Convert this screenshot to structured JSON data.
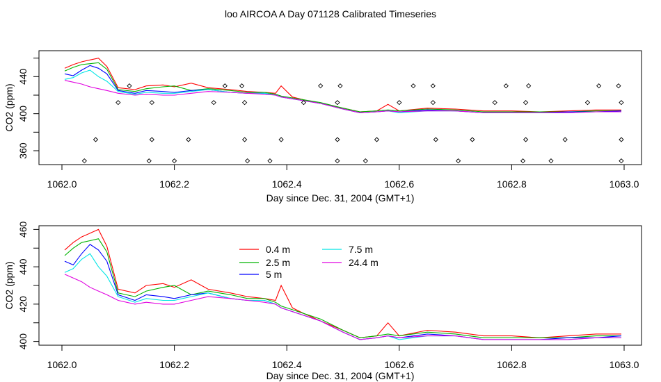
{
  "figure": {
    "title": "loo AIRCOA A  Day 071128  Calibrated Timeseries"
  },
  "series_colors": {
    "0.4 m": "#ff0000",
    "2.5 m": "#00b400",
    "5 m": "#0000ff",
    "7.5 m": "#00e5e5",
    "24.4 m": "#e000e0"
  },
  "chart_data": [
    {
      "type": "line",
      "xlabel": "Day since Dec. 31, 2004 (GMT+1)",
      "ylabel": "CO2 (ppm)",
      "xlim": [
        1062.0,
        1063.0
      ],
      "ylim": [
        345,
        468
      ],
      "xticks": [
        1062.0,
        1062.2,
        1062.4,
        1062.6,
        1062.8,
        1063.0
      ],
      "xtick_labels": [
        "1062.0",
        "1062.2",
        "1062.4",
        "1062.6",
        "1062.8",
        "1063.0"
      ],
      "yticks": [
        360,
        400,
        440
      ],
      "ytick_labels": [
        "360",
        "400",
        "440"
      ],
      "minor_yticks": [
        340,
        380,
        420,
        460
      ],
      "grid": false,
      "x": [
        1062.005,
        1062.02,
        1062.035,
        1062.05,
        1062.065,
        1062.08,
        1062.1,
        1062.13,
        1062.15,
        1062.18,
        1062.2,
        1062.23,
        1062.26,
        1062.3,
        1062.33,
        1062.36,
        1062.38,
        1062.39,
        1062.41,
        1062.43,
        1062.46,
        1062.5,
        1062.53,
        1062.56,
        1062.58,
        1062.6,
        1062.65,
        1062.7,
        1062.75,
        1062.8,
        1062.85,
        1062.9,
        1062.95,
        1062.995
      ],
      "series": [
        {
          "name": "0.4 m",
          "values": [
            449,
            453,
            456,
            458,
            460,
            451,
            428,
            426,
            430,
            431,
            429,
            433,
            428,
            426,
            424,
            423,
            422,
            430,
            418,
            415,
            411,
            406,
            402,
            403,
            410,
            403,
            406,
            405,
            403,
            403,
            402,
            403,
            404,
            404
          ]
        },
        {
          "name": "2.5 m",
          "values": [
            446,
            450,
            453,
            454,
            455,
            448,
            426,
            424,
            427,
            429,
            430,
            425,
            427,
            425,
            423,
            423,
            421,
            419,
            417,
            415,
            412,
            406,
            402,
            403,
            404,
            403,
            405,
            404,
            402,
            402,
            402,
            402,
            403,
            403
          ]
        },
        {
          "name": "5 m",
          "values": [
            443,
            441,
            447,
            452,
            449,
            443,
            425,
            422,
            425,
            424,
            423,
            425,
            426,
            423,
            422,
            422,
            420,
            418,
            416,
            414,
            411,
            405,
            401,
            402,
            403,
            402,
            404,
            403,
            401,
            401,
            401,
            402,
            402,
            403
          ]
        },
        {
          "name": "7.5 m",
          "values": [
            437,
            439,
            444,
            447,
            440,
            435,
            424,
            421,
            423,
            422,
            422,
            424,
            426,
            423,
            422,
            422,
            420,
            418,
            416,
            414,
            411,
            405,
            401,
            402,
            403,
            401,
            403,
            403,
            401,
            401,
            401,
            401,
            402,
            402
          ]
        },
        {
          "name": "24.4 m",
          "values": [
            436,
            434,
            432,
            429,
            427,
            425,
            422,
            420,
            421,
            420,
            420,
            422,
            424,
            423,
            422,
            421,
            420,
            418,
            416,
            414,
            411,
            405,
            401,
            402,
            403,
            402,
            403,
            403,
            401,
            401,
            401,
            401,
            402,
            402
          ]
        }
      ],
      "markers": {
        "symbol": "diamond",
        "x": [
          1062.04,
          1062.06,
          1062.1,
          1062.12,
          1062.155,
          1062.16,
          1062.16,
          1062.2,
          1062.225,
          1062.27,
          1062.29,
          1062.32,
          1062.325,
          1062.325,
          1062.33,
          1062.37,
          1062.39,
          1062.43,
          1062.46,
          1062.49,
          1062.49,
          1062.49,
          1062.495,
          1062.54,
          1062.56,
          1062.6,
          1062.625,
          1062.66,
          1062.66,
          1062.665,
          1062.705,
          1062.73,
          1062.77,
          1062.79,
          1062.82,
          1062.825,
          1062.825,
          1062.83,
          1062.87,
          1062.895,
          1062.935,
          1062.955,
          1062.99,
          1062.995,
          1062.995,
          1062.995
        ],
        "y": [
          349,
          372,
          412,
          430,
          349,
          372,
          412,
          349,
          372,
          412,
          430,
          430,
          412,
          372,
          349,
          349,
          372,
          412,
          430,
          412,
          372,
          349,
          430,
          349,
          372,
          412,
          430,
          430,
          412,
          372,
          349,
          372,
          412,
          430,
          349,
          372,
          412,
          430,
          349,
          372,
          412,
          430,
          430,
          412,
          372,
          349
        ]
      }
    },
    {
      "type": "line",
      "xlabel": "Day since Dec. 31, 2004 (GMT+1)",
      "ylabel": "CO2 (ppm)",
      "xlim": [
        1062.0,
        1063.0
      ],
      "ylim": [
        398,
        462
      ],
      "xticks": [
        1062.0,
        1062.2,
        1062.4,
        1062.6,
        1062.8,
        1063.0
      ],
      "xtick_labels": [
        "1062.0",
        "1062.2",
        "1062.4",
        "1062.6",
        "1062.8",
        "1063.0"
      ],
      "yticks": [
        400,
        420,
        440,
        460
      ],
      "ytick_labels": [
        "400",
        "420",
        "440",
        "460"
      ],
      "minor_yticks": [
        410,
        430,
        450
      ],
      "grid": false,
      "legend": {
        "placement": "upper-center",
        "entries": [
          "0.4 m",
          "2.5 m",
          "5 m",
          "7.5 m",
          "24.4 m"
        ]
      },
      "x": [
        1062.005,
        1062.02,
        1062.035,
        1062.05,
        1062.065,
        1062.08,
        1062.1,
        1062.13,
        1062.15,
        1062.18,
        1062.2,
        1062.23,
        1062.26,
        1062.3,
        1062.33,
        1062.36,
        1062.38,
        1062.39,
        1062.41,
        1062.43,
        1062.46,
        1062.5,
        1062.53,
        1062.56,
        1062.58,
        1062.6,
        1062.65,
        1062.7,
        1062.75,
        1062.8,
        1062.85,
        1062.9,
        1062.95,
        1062.995
      ],
      "series": [
        {
          "name": "0.4 m",
          "values": [
            449,
            453,
            456,
            458,
            460,
            451,
            428,
            426,
            430,
            431,
            429,
            433,
            428,
            426,
            424,
            423,
            422,
            430,
            418,
            415,
            411,
            406,
            402,
            403,
            410,
            403,
            406,
            405,
            403,
            403,
            402,
            403,
            404,
            404
          ]
        },
        {
          "name": "2.5 m",
          "values": [
            446,
            450,
            453,
            454,
            455,
            448,
            426,
            424,
            427,
            429,
            430,
            425,
            427,
            425,
            423,
            423,
            421,
            419,
            417,
            415,
            412,
            406,
            402,
            403,
            404,
            403,
            405,
            404,
            402,
            402,
            402,
            402,
            403,
            403
          ]
        },
        {
          "name": "5 m",
          "values": [
            443,
            441,
            447,
            452,
            449,
            443,
            425,
            422,
            425,
            424,
            423,
            425,
            426,
            423,
            422,
            422,
            420,
            418,
            416,
            414,
            411,
            405,
            401,
            402,
            403,
            402,
            404,
            403,
            401,
            401,
            401,
            402,
            402,
            403
          ]
        },
        {
          "name": "7.5 m",
          "values": [
            437,
            439,
            444,
            447,
            440,
            435,
            424,
            421,
            423,
            422,
            422,
            424,
            426,
            423,
            422,
            422,
            420,
            418,
            416,
            414,
            411,
            405,
            401,
            402,
            403,
            401,
            403,
            403,
            401,
            401,
            401,
            401,
            402,
            402
          ]
        },
        {
          "name": "24.4 m",
          "values": [
            436,
            434,
            432,
            429,
            427,
            425,
            422,
            420,
            421,
            420,
            420,
            422,
            424,
            423,
            422,
            421,
            420,
            418,
            416,
            414,
            411,
            405,
            401,
            402,
            403,
            402,
            403,
            403,
            401,
            401,
            401,
            401,
            402,
            402
          ]
        }
      ]
    }
  ]
}
